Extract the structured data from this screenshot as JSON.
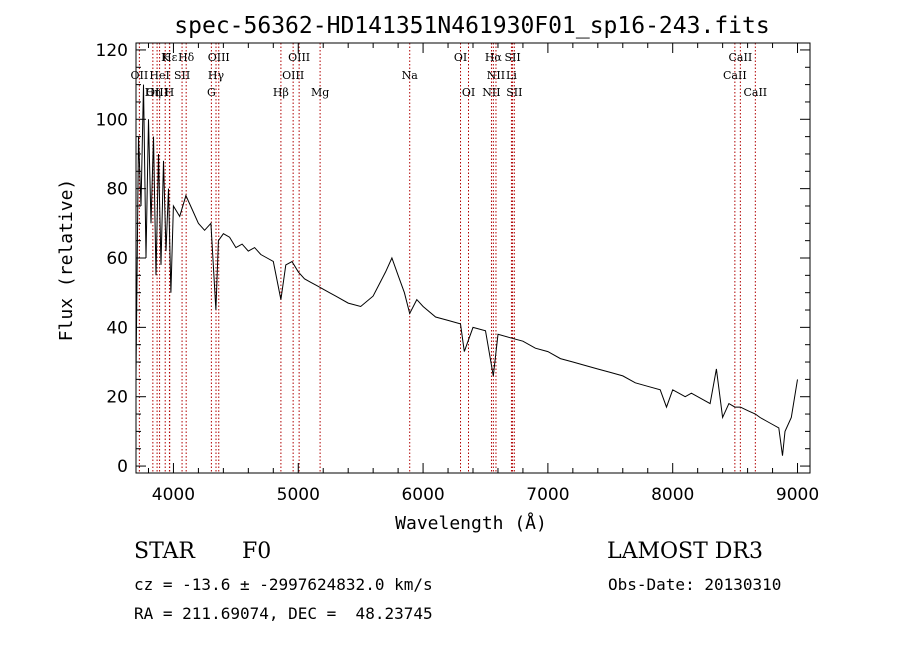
{
  "chart_data": {
    "type": "line",
    "title": "spec-56362-HD141351N461930F01_sp16-243.fits",
    "xlabel": "Wavelength (Å)",
    "ylabel": "Flux (relative)",
    "xlim": [
      3700,
      9100
    ],
    "ylim": [
      -2,
      122
    ],
    "xticks": [
      4000,
      5000,
      6000,
      7000,
      8000,
      9000
    ],
    "yticks": [
      0,
      20,
      40,
      60,
      80,
      100,
      120
    ],
    "grid": false,
    "series": [
      {
        "name": "flux",
        "x": [
          3700,
          3720,
          3740,
          3760,
          3780,
          3800,
          3820,
          3840,
          3860,
          3880,
          3900,
          3920,
          3940,
          3960,
          3980,
          4000,
          4050,
          4100,
          4150,
          4200,
          4250,
          4300,
          4340,
          4360,
          4400,
          4450,
          4500,
          4550,
          4600,
          4650,
          4700,
          4750,
          4800,
          4861,
          4900,
          4950,
          5000,
          5050,
          5100,
          5150,
          5200,
          5250,
          5300,
          5400,
          5500,
          5600,
          5700,
          5750,
          5800,
          5850,
          5893,
          5950,
          6000,
          6100,
          6200,
          6300,
          6330,
          6400,
          6500,
          6563,
          6600,
          6700,
          6800,
          6900,
          7000,
          7100,
          7200,
          7300,
          7400,
          7500,
          7600,
          7700,
          7800,
          7900,
          7950,
          8000,
          8050,
          8100,
          8150,
          8200,
          8300,
          8350,
          8400,
          8450,
          8498,
          8542,
          8600,
          8662,
          8700,
          8750,
          8800,
          8850,
          8880,
          8900,
          8950,
          9000
        ],
        "y": [
          26,
          95,
          75,
          110,
          60,
          100,
          70,
          95,
          55,
          90,
          58,
          88,
          62,
          80,
          50,
          75,
          72,
          78,
          74,
          70,
          68,
          70,
          45,
          65,
          67,
          66,
          63,
          64,
          62,
          63,
          61,
          60,
          59,
          48,
          58,
          59,
          56,
          54,
          53,
          52,
          51,
          50,
          49,
          47,
          46,
          49,
          56,
          60,
          55,
          50,
          44,
          48,
          46,
          43,
          42,
          41,
          33,
          40,
          39,
          26,
          38,
          37,
          36,
          34,
          33,
          31,
          30,
          29,
          28,
          27,
          26,
          24,
          23,
          22,
          17,
          22,
          21,
          20,
          21,
          20,
          18,
          28,
          14,
          18,
          17,
          17,
          16,
          15,
          14,
          13,
          12,
          11,
          3,
          10,
          14,
          25
        ]
      }
    ],
    "line_markers": [
      {
        "label": "Hε",
        "x": 3970,
        "row": 0
      },
      {
        "label": "K",
        "x": 3934,
        "row": 0
      },
      {
        "label": "Hδ",
        "x": 4102,
        "row": 0
      },
      {
        "label": "OIII",
        "x": 4363,
        "row": 0
      },
      {
        "label": "OIII",
        "x": 5007,
        "row": 0
      },
      {
        "label": "OI",
        "x": 6300,
        "row": 0
      },
      {
        "label": "Hα",
        "x": 6563,
        "row": 0
      },
      {
        "label": "SII",
        "x": 6717,
        "row": 0
      },
      {
        "label": "CaII",
        "x": 8542,
        "row": 0
      },
      {
        "label": "OII",
        "x": 3727,
        "row": 1
      },
      {
        "label": "HeI",
        "x": 3889,
        "row": 1
      },
      {
        "label": "SII",
        "x": 4069,
        "row": 1
      },
      {
        "label": "Hγ",
        "x": 4341,
        "row": 1
      },
      {
        "label": "OIII",
        "x": 4959,
        "row": 1
      },
      {
        "label": "Na",
        "x": 5893,
        "row": 1
      },
      {
        "label": "NII",
        "x": 6584,
        "row": 1
      },
      {
        "label": "Li",
        "x": 6708,
        "row": 1
      },
      {
        "label": "CaII",
        "x": 8498,
        "row": 1
      },
      {
        "label": "OIII",
        "x": 3869,
        "row": 2
      },
      {
        "label": "H",
        "x": 3968,
        "row": 2
      },
      {
        "label": "Hη",
        "x": 3835,
        "row": 2
      },
      {
        "label": "G",
        "x": 4304,
        "row": 2
      },
      {
        "label": "Hβ",
        "x": 4861,
        "row": 2
      },
      {
        "label": "Mg",
        "x": 5175,
        "row": 2
      },
      {
        "label": "OI",
        "x": 6364,
        "row": 2
      },
      {
        "label": "NII",
        "x": 6548,
        "row": 2
      },
      {
        "label": "SII",
        "x": 6731,
        "row": 2
      },
      {
        "label": "CaII",
        "x": 8662,
        "row": 2
      }
    ]
  },
  "info": {
    "object_class": "STAR",
    "subclass": "F0",
    "survey": "LAMOST DR3",
    "cz_line": "cz = -13.6 ± -2997624832.0 km/s",
    "obs_date_line": "Obs-Date: 20130310",
    "radec_line": "RA = 211.69074, DEC =  48.23745"
  },
  "colors": {
    "line": "#000000",
    "marker": "#b00000"
  }
}
